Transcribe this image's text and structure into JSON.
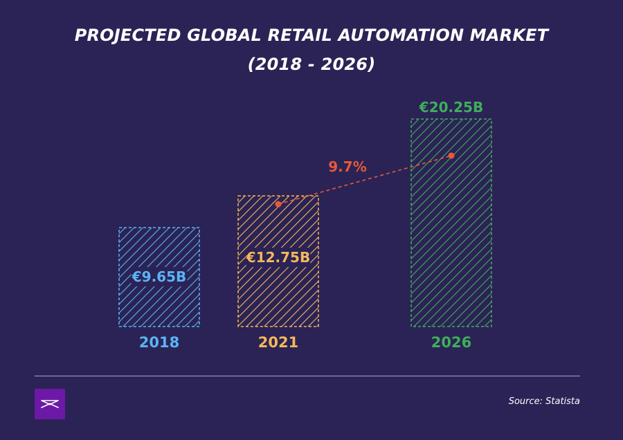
{
  "title_line1": "PROJECTED GLOBAL RETAIL AUTOMATION MARKET",
  "title_line2": "(2018 - 2026)",
  "source": "Source: Statista",
  "logo_icon": "bow-logo-icon",
  "colors": {
    "background": "#2b2355",
    "blue": "#5ab4f5",
    "orange": "#f5b85a",
    "green": "#3fae5b",
    "growth_line": "#e8593a",
    "logo_bg": "#6c19a8"
  },
  "chart_data": {
    "type": "bar",
    "title": "PROJECTED GLOBAL RETAIL AUTOMATION MARKET (2018 - 2026)",
    "categories": [
      "2018",
      "2021",
      "2026"
    ],
    "values": [
      9.65,
      12.75,
      20.25
    ],
    "value_labels": [
      "€9.65B",
      "€12.75B",
      "€20.25B"
    ],
    "unit": "€B",
    "bar_colors": [
      "#5ab4f5",
      "#f5b85a",
      "#3fae5b"
    ],
    "annotation": {
      "text": "9.7%",
      "from_category": "2021",
      "to_category": "2026"
    },
    "ylim": [
      0,
      20.25
    ],
    "grid": false,
    "legend": "none"
  }
}
